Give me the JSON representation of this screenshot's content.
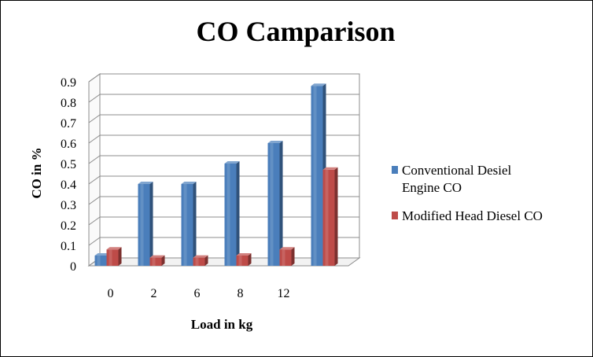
{
  "chart_data": {
    "type": "bar",
    "title": "CO Camparison",
    "xlabel": "Load in kg",
    "ylabel": "CO in %",
    "categories": [
      "0",
      "2",
      "6",
      "8",
      "12",
      ""
    ],
    "ylim": [
      0,
      0.9
    ],
    "yticks": [
      "0",
      "0.1",
      "0.2",
      "0.3",
      "0.4",
      "0.5",
      "0.6",
      "0.7",
      "0.8",
      "0.9"
    ],
    "series": [
      {
        "name": "Conventional Desiel Engine CO",
        "legend_lines": [
          "Conventional Desiel",
          "Engine CO"
        ],
        "color": "#4a7ebb",
        "values": [
          0.05,
          0.4,
          0.4,
          0.5,
          0.6,
          0.88
        ]
      },
      {
        "name": "Modified Head Diesel CO",
        "legend_lines": [
          "Modified Head Diesel CO"
        ],
        "color": "#be4b48",
        "values": [
          0.08,
          0.04,
          0.04,
          0.05,
          0.08,
          0.47
        ]
      }
    ],
    "grid": true,
    "legend_position": "right",
    "style": "3d-cylinder"
  }
}
